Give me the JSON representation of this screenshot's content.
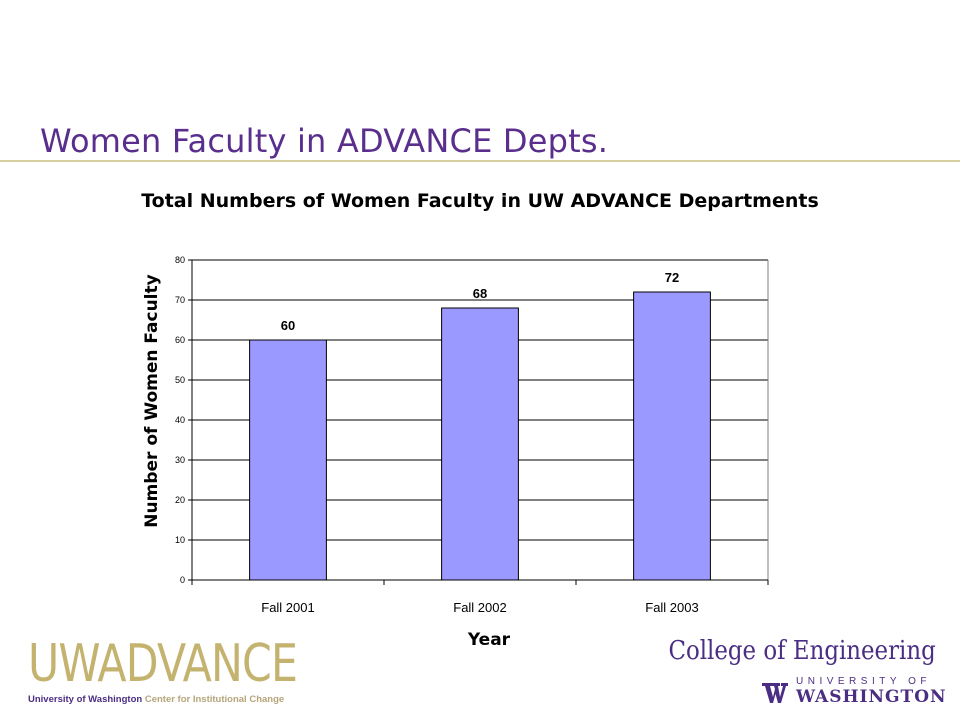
{
  "slide": {
    "title": "Women Faculty in ADVANCE Depts."
  },
  "chart_data": {
    "type": "bar",
    "title": "Total Numbers of Women Faculty in UW ADVANCE Departments",
    "xlabel": "Year",
    "ylabel": "Number of Women Faculty",
    "categories": [
      "Fall 2001",
      "Fall 2002",
      "Fall 2003"
    ],
    "values": [
      60,
      68,
      72
    ],
    "data_labels": [
      "60",
      "68",
      "72"
    ],
    "ylim": [
      0,
      80
    ],
    "yticks": [
      0,
      10,
      20,
      30,
      40,
      50,
      60,
      70,
      80
    ],
    "grid": true,
    "bar_color": "#9999ff",
    "legend": "none"
  },
  "logos": {
    "left": {
      "wordmark": "UWADVANCE",
      "subtitle_main": "University of Washington",
      "subtitle_accent": "Center for Institutional Change"
    },
    "right": {
      "college": "College of Engineering",
      "university_line": "UNIVERSITY OF",
      "washington_line": "WASHINGTON"
    }
  },
  "colors": {
    "title_purple": "#5a2e8c",
    "rule_gold": "#d8cfa0",
    "uw_purple": "#4b2e83",
    "uw_gold": "#c3b36f"
  }
}
